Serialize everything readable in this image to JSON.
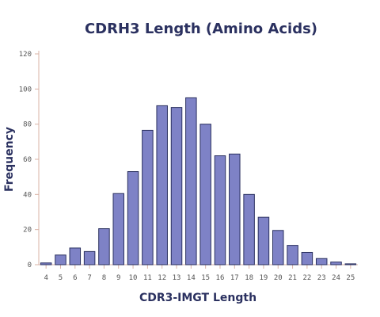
{
  "chart_data": {
    "type": "bar",
    "title": "CDRH3 Length (Amino Acids)",
    "xlabel": "CDR3-IMGT Length",
    "ylabel": "Frequency",
    "categories": [
      "4",
      "5",
      "6",
      "7",
      "8",
      "9",
      "10",
      "11",
      "12",
      "13",
      "14",
      "15",
      "16",
      "17",
      "18",
      "19",
      "20",
      "21",
      "22",
      "23",
      "24",
      "25"
    ],
    "values": [
      1,
      5.5,
      9.5,
      7.5,
      20.5,
      40.5,
      53,
      76.5,
      90.5,
      89.5,
      95,
      80,
      62,
      63,
      40,
      27,
      19.5,
      11,
      7,
      3.5,
      1.5,
      0.5
    ],
    "yticks": [
      "0",
      "20",
      "40",
      "60",
      "80",
      "100",
      "120"
    ],
    "ylim": [
      0,
      120
    ],
    "grid": false,
    "colors": {
      "bar_fill": "#7e82c6",
      "bar_stroke": "#2b3160",
      "text": "#2b3160",
      "axis": "#d9b3a6"
    }
  }
}
